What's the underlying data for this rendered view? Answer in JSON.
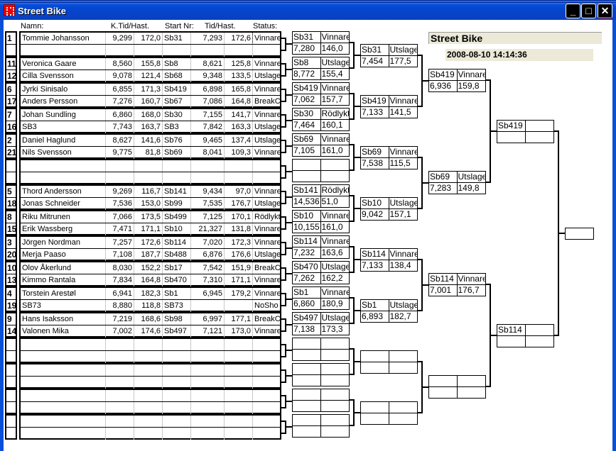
{
  "window": {
    "title": "Street Bike",
    "minimize": "_",
    "maximize": "□",
    "close": "✕"
  },
  "headers": {
    "name": "Namn:",
    "ktid": "K.Tid/Hast.",
    "start": "Start Nr:",
    "tid": "Tid/Hast.",
    "status": "Status:"
  },
  "info": {
    "title": "Street Bike",
    "datetime": "2008-08-10 14:14:36"
  },
  "heats": [
    [
      {
        "seed": "1",
        "name": "Tommie Johansson",
        "ktid": "9,299",
        "khast": "172,0",
        "start": "Sb31",
        "tid": "7,293",
        "hast": "172,6",
        "status": "Vinnare"
      },
      {
        "seed": "",
        "name": "",
        "ktid": "",
        "khast": "",
        "start": "",
        "tid": "",
        "hast": "",
        "status": ""
      }
    ],
    [
      {
        "seed": "11",
        "name": "Veronica Gaare",
        "ktid": "8,560",
        "khast": "155,8",
        "start": "Sb8",
        "tid": "8,621",
        "hast": "125,8",
        "status": "Vinnare"
      },
      {
        "seed": "12",
        "name": "Cilla Svensson",
        "ktid": "9,078",
        "khast": "121,4",
        "start": "Sb68",
        "tid": "9,348",
        "hast": "133,5",
        "status": "Utslagen"
      }
    ],
    [
      {
        "seed": "6",
        "name": "Jyrki Sinisalo",
        "ktid": "6,855",
        "khast": "171,3",
        "start": "Sb419",
        "tid": "6,898",
        "hast": "165,8",
        "status": "Vinnare"
      },
      {
        "seed": "17",
        "name": "Anders Persson",
        "ktid": "7,276",
        "khast": "160,7",
        "start": "Sb67",
        "tid": "7,086",
        "hast": "164,8",
        "status": "BreakC"
      }
    ],
    [
      {
        "seed": "7",
        "name": "Johan Sundling",
        "ktid": "6,860",
        "khast": "168,0",
        "start": "Sb30",
        "tid": "7,155",
        "hast": "141,7",
        "status": "Vinnare"
      },
      {
        "seed": "16",
        "name": "SB3",
        "ktid": "7,743",
        "khast": "163,7",
        "start": "SB3",
        "tid": "7,842",
        "hast": "163,3",
        "status": "Utslagen"
      }
    ],
    [
      {
        "seed": "2",
        "name": "Daniel Haglund",
        "ktid": "8,627",
        "khast": "141,6",
        "start": "Sb76",
        "tid": "9,465",
        "hast": "137,4",
        "status": "Utslagen"
      },
      {
        "seed": "21",
        "name": "Nils Svensson",
        "ktid": "9,775",
        "khast": "81,8",
        "start": "Sb69",
        "tid": "8,041",
        "hast": "109,3",
        "status": "Vinnare"
      }
    ],
    [
      {
        "seed": "",
        "name": "",
        "ktid": "",
        "khast": "",
        "start": "",
        "tid": "",
        "hast": "",
        "status": ""
      },
      {
        "seed": "",
        "name": "",
        "ktid": "",
        "khast": "",
        "start": "",
        "tid": "",
        "hast": "",
        "status": ""
      }
    ],
    [
      {
        "seed": "5",
        "name": "Thord Andersson",
        "ktid": "9,269",
        "khast": "116,7",
        "start": "Sb141",
        "tid": "9,434",
        "hast": "97,0",
        "status": "Vinnare"
      },
      {
        "seed": "18",
        "name": "Jonas Schneider",
        "ktid": "7,536",
        "khast": "153,0",
        "start": "Sb99",
        "tid": "7,535",
        "hast": "176,7",
        "status": "Utslagen"
      }
    ],
    [
      {
        "seed": "8",
        "name": "Riku Mitrunen",
        "ktid": "7,066",
        "khast": "173,5",
        "start": "Sb499",
        "tid": "7,125",
        "hast": "170,1",
        "status": "Rödlykta"
      },
      {
        "seed": "15",
        "name": "Erik Wassberg",
        "ktid": "7,471",
        "khast": "171,1",
        "start": "Sb10",
        "tid": "21,327",
        "hast": "131,8",
        "status": "Vinnare"
      }
    ],
    [
      {
        "seed": "3",
        "name": "Jörgen Nordman",
        "ktid": "7,257",
        "khast": "172,6",
        "start": "Sb114",
        "tid": "7,020",
        "hast": "172,3",
        "status": "Vinnare"
      },
      {
        "seed": "20",
        "name": "Merja Paaso",
        "ktid": "7,108",
        "khast": "187,7",
        "start": "Sb488",
        "tid": "6,876",
        "hast": "176,6",
        "status": "Utslagen"
      }
    ],
    [
      {
        "seed": "10",
        "name": "Olov Åkerlund",
        "ktid": "8,030",
        "khast": "152,2",
        "start": "Sb17",
        "tid": "7,542",
        "hast": "151,9",
        "status": "BreakC"
      },
      {
        "seed": "13",
        "name": "Kimmo Rantala",
        "ktid": "7,834",
        "khast": "164,8",
        "start": "Sb470",
        "tid": "7,310",
        "hast": "171,1",
        "status": "Vinnare"
      }
    ],
    [
      {
        "seed": "4",
        "name": "Torstein Arestøl",
        "ktid": "6,941",
        "khast": "182,3",
        "start": "Sb1",
        "tid": "6,945",
        "hast": "179,2",
        "status": "Vinnare"
      },
      {
        "seed": "19",
        "name": "SB73",
        "ktid": "8,880",
        "khast": "118,8",
        "start": "SB73",
        "tid": "",
        "hast": "",
        "status": "NoSho"
      }
    ],
    [
      {
        "seed": "9",
        "name": "Hans Isaksson",
        "ktid": "7,219",
        "khast": "168,6",
        "start": "Sb98",
        "tid": "6,997",
        "hast": "177,1",
        "status": "BreakC"
      },
      {
        "seed": "14",
        "name": "Valonen Mika",
        "ktid": "7,002",
        "khast": "174,6",
        "start": "Sb497",
        "tid": "7,121",
        "hast": "173,0",
        "status": "Vinnare"
      }
    ],
    [
      {
        "seed": "",
        "name": "",
        "ktid": "",
        "khast": "",
        "start": "",
        "tid": "",
        "hast": "",
        "status": ""
      },
      {
        "seed": "",
        "name": "",
        "ktid": "",
        "khast": "",
        "start": "",
        "tid": "",
        "hast": "",
        "status": ""
      }
    ],
    [
      {
        "seed": "",
        "name": "",
        "ktid": "",
        "khast": "",
        "start": "",
        "tid": "",
        "hast": "",
        "status": ""
      },
      {
        "seed": "",
        "name": "",
        "ktid": "",
        "khast": "",
        "start": "",
        "tid": "",
        "hast": "",
        "status": ""
      }
    ],
    [
      {
        "seed": "",
        "name": "",
        "ktid": "",
        "khast": "",
        "start": "",
        "tid": "",
        "hast": "",
        "status": ""
      },
      {
        "seed": "",
        "name": "",
        "ktid": "",
        "khast": "",
        "start": "",
        "tid": "",
        "hast": "",
        "status": ""
      }
    ],
    [
      {
        "seed": "",
        "name": "",
        "ktid": "",
        "khast": "",
        "start": "",
        "tid": "",
        "hast": "",
        "status": ""
      },
      {
        "seed": "",
        "name": "",
        "ktid": "",
        "khast": "",
        "start": "",
        "tid": "",
        "hast": "",
        "status": ""
      }
    ]
  ],
  "rounds": [
    [
      [
        "Sb31",
        "Vinnare",
        "7,280",
        "146,0"
      ],
      [
        "Sb8",
        "Utslagen",
        "8,772",
        "155,4"
      ],
      [
        "Sb419",
        "Vinnare",
        "7,062",
        "157,7"
      ],
      [
        "Sb30",
        "Rödlykta",
        "7,464",
        "160,1"
      ],
      [
        "Sb69",
        "Vinnare",
        "7,105",
        "161,0"
      ],
      [
        "",
        "",
        "",
        ""
      ],
      [
        "Sb141",
        "Rödlykta",
        "14,536",
        "51,0"
      ],
      [
        "Sb10",
        "Vinnare",
        "10,155",
        "161,0"
      ],
      [
        "Sb114",
        "Vinnare",
        "7,232",
        "163,6"
      ],
      [
        "Sb470",
        "Utslagen",
        "7,262",
        "162,2"
      ],
      [
        "Sb1",
        "Vinnare",
        "6,860",
        "180,9"
      ],
      [
        "Sb497",
        "Utslagen",
        "7,138",
        "173,3"
      ],
      [
        "",
        "",
        "",
        ""
      ],
      [
        "",
        "",
        "",
        ""
      ],
      [
        "",
        "",
        "",
        ""
      ],
      [
        "",
        "",
        "",
        ""
      ]
    ],
    [
      [
        "Sb31",
        "Utslagen",
        "7,454",
        "177,5"
      ],
      [
        "Sb419",
        "Vinnare",
        "7,133",
        "141,5"
      ],
      [
        "Sb69",
        "Vinnare",
        "7,538",
        "115,5"
      ],
      [
        "Sb10",
        "Utslagen",
        "9,042",
        "157,1"
      ],
      [
        "Sb114",
        "Vinnare",
        "7,133",
        "138,4"
      ],
      [
        "Sb1",
        "Utslagen",
        "6,893",
        "182,7"
      ],
      [
        "",
        "",
        "",
        ""
      ],
      [
        "",
        "",
        "",
        ""
      ]
    ],
    [
      [
        "Sb419",
        "Vinnare",
        "6,936",
        "159,8"
      ],
      [
        "Sb69",
        "Utslagen",
        "7,283",
        "149,8"
      ],
      [
        "Sb114",
        "Vinnare",
        "7,001",
        "176,7"
      ],
      [
        "",
        "",
        "",
        ""
      ]
    ],
    [
      [
        "Sb419",
        "",
        "",
        ""
      ],
      [
        "Sb114",
        "",
        "",
        ""
      ]
    ]
  ],
  "final": ""
}
